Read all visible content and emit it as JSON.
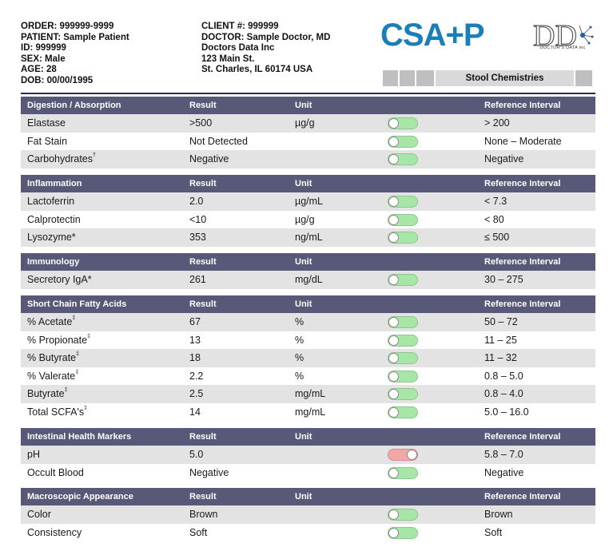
{
  "patient": {
    "order": "ORDER: 999999-9999",
    "name": "PATIENT: Sample Patient",
    "id": "ID: 999999",
    "sex": "SEX: Male",
    "age": "AGE: 28",
    "dob": "DOB: 00/00/1995"
  },
  "client": {
    "number": "CLIENT #: 999999",
    "doctor": "DOCTOR: Sample Doctor, MD",
    "org": "Doctors Data Inc",
    "street": "123 Main St.",
    "city": "St. Charles, IL 60174 USA"
  },
  "logo": {
    "text": "CSA+P",
    "color": "#1a7fb8"
  },
  "ddi_logo": {
    "letters": "DD",
    "subtitle": "DOCTOR'S DATA inc"
  },
  "report_tab": "Stool Chemistries",
  "colors": {
    "header": "#585878",
    "shade": "#e3e3e3",
    "normal": "#a8e6a8",
    "abnormal": "#f3a7a7"
  },
  "sections": [
    {
      "title": "Digestion / Absorption",
      "h_result": "Result",
      "h_unit": "Unit",
      "h_ref": "Reference Interval",
      "rows": [
        {
          "name": "Elastase",
          "sup": "",
          "result": ">500",
          "unit": "µg/g",
          "ref": "> 200",
          "status": "normal"
        },
        {
          "name": "Fat Stain",
          "sup": "",
          "result": "Not Detected",
          "unit": "",
          "ref": "None – Moderate",
          "status": "normal"
        },
        {
          "name": "Carbohydrates",
          "sup": "†",
          "result": "Negative",
          "unit": "",
          "ref": "Negative",
          "status": "normal"
        }
      ]
    },
    {
      "title": "Inflammation",
      "h_result": "Result",
      "h_unit": "Unit",
      "h_ref": "Reference Interval",
      "rows": [
        {
          "name": "Lactoferrin",
          "sup": "",
          "result": "2.0",
          "unit": "µg/mL",
          "ref": "< 7.3",
          "status": "normal"
        },
        {
          "name": "Calprotectin",
          "sup": "",
          "result": "<10",
          "unit": "µg/g",
          "ref": "< 80",
          "status": "normal"
        },
        {
          "name": "Lysozyme*",
          "sup": "",
          "result": "353",
          "unit": "ng/mL",
          "ref": "≤ 500",
          "status": "normal"
        }
      ]
    },
    {
      "title": "Immunology",
      "h_result": "Result",
      "h_unit": "Unit",
      "h_ref": "Reference Interval",
      "rows": [
        {
          "name": "Secretory IgA*",
          "sup": "",
          "result": "261",
          "unit": "mg/dL",
          "ref": "30 – 275",
          "status": "normal"
        }
      ]
    },
    {
      "title": "Short Chain Fatty Acids",
      "h_result": "Result",
      "h_unit": "Unit",
      "h_ref": "Reference Interval",
      "rows": [
        {
          "name": "% Acetate",
          "sup": "‡",
          "result": "67",
          "unit": "%",
          "ref": "50 – 72",
          "status": "normal"
        },
        {
          "name": "% Propionate",
          "sup": "‡",
          "result": "13",
          "unit": "%",
          "ref": "11 – 25",
          "status": "normal"
        },
        {
          "name": "% Butyrate",
          "sup": "‡",
          "result": "18",
          "unit": "%",
          "ref": "11 – 32",
          "status": "normal"
        },
        {
          "name": "% Valerate",
          "sup": "‡",
          "result": "2.2",
          "unit": "%",
          "ref": "0.8 – 5.0",
          "status": "normal"
        },
        {
          "name": "Butyrate",
          "sup": "‡",
          "result": "2.5",
          "unit": "mg/mL",
          "ref": "0.8 – 4.0",
          "status": "normal"
        },
        {
          "name": "Total SCFA's",
          "sup": "‡",
          "result": "14",
          "unit": "mg/mL",
          "ref": "5.0 – 16.0",
          "status": "normal"
        }
      ]
    },
    {
      "title": "Intestinal Health Markers",
      "h_result": "Result",
      "h_unit": "Unit",
      "h_ref": "Reference Interval",
      "rows": [
        {
          "name": "pH",
          "sup": "",
          "result": "5.0",
          "unit": "",
          "ref": "5.8 – 7.0",
          "status": "abnormal"
        },
        {
          "name": "Occult Blood",
          "sup": "",
          "result": "Negative",
          "unit": "",
          "ref": "Negative",
          "status": "normal"
        }
      ]
    },
    {
      "title": "Macroscopic Appearance",
      "h_result": "Result",
      "h_unit": "Unit",
      "h_ref": "Reference Interval",
      "rows": [
        {
          "name": "Color",
          "sup": "",
          "result": "Brown",
          "unit": "",
          "ref": "Brown",
          "status": "normal"
        },
        {
          "name": "Consistency",
          "sup": "",
          "result": "Soft",
          "unit": "",
          "ref": "Soft",
          "status": "normal"
        }
      ]
    }
  ]
}
